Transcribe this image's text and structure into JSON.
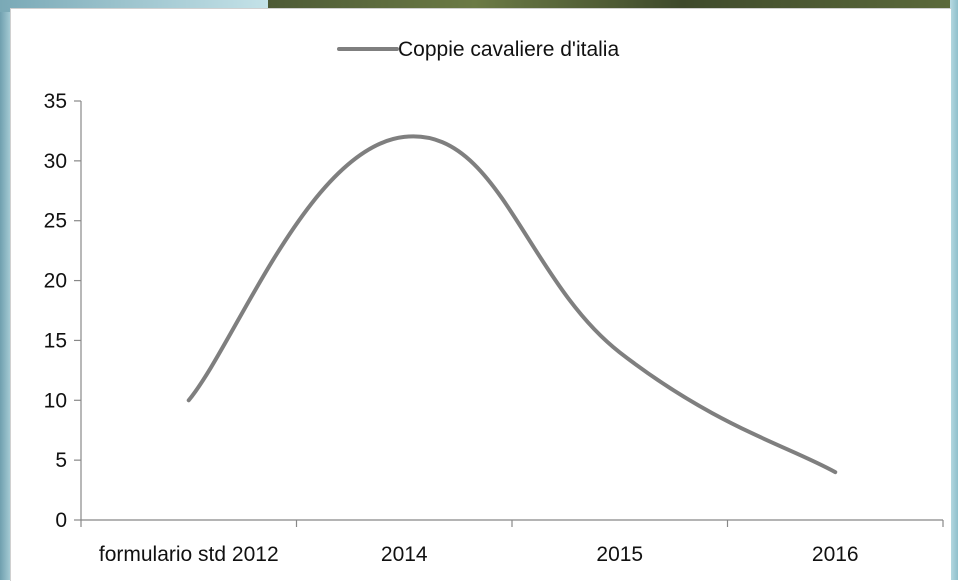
{
  "colors": {
    "series_line": "#7f7f7f",
    "axis": "#888888",
    "text": "#111111"
  },
  "chart_data": {
    "type": "line",
    "smooth": true,
    "categories": [
      "formulario std 2012",
      "2014",
      "2015",
      "2016"
    ],
    "series": [
      {
        "name": "Coppie cavaliere d'italia",
        "values": [
          10,
          32,
          14,
          4
        ]
      }
    ],
    "ylim": [
      0,
      35
    ],
    "yticks": [
      0,
      5,
      10,
      15,
      20,
      25,
      30,
      35
    ],
    "legend_position": "top-center",
    "grid": false
  }
}
